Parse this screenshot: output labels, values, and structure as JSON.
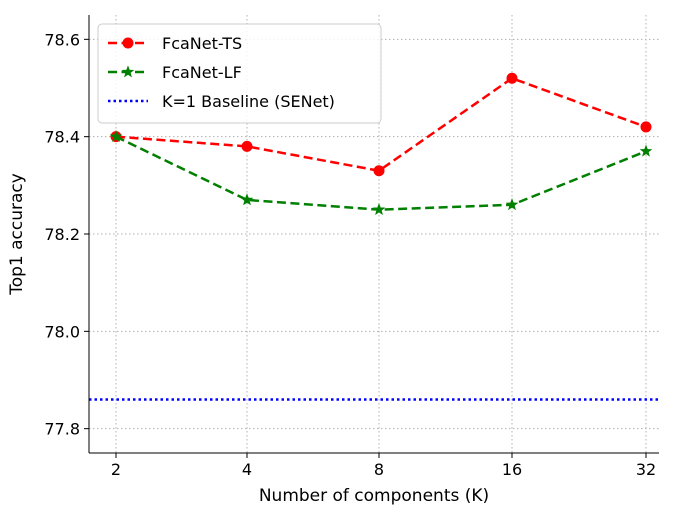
{
  "chart_data": {
    "type": "line",
    "categories": [
      "2",
      "4",
      "8",
      "16",
      "32"
    ],
    "xlabel": "Number of components (K)",
    "ylabel": "Top1 accuracy",
    "ylim": [
      77.75,
      78.65
    ],
    "yticks": [
      77.8,
      78.0,
      78.2,
      78.4,
      78.6
    ],
    "grid": true,
    "legend_position": "top-left",
    "series": [
      {
        "name": "FcaNet-TS",
        "color": "#ff0000",
        "marker": "circle",
        "style": "dashed",
        "values": [
          78.4,
          78.38,
          78.33,
          78.52,
          78.42
        ]
      },
      {
        "name": "FcaNet-LF",
        "color": "#008000",
        "marker": "star",
        "style": "dashed",
        "values": [
          78.4,
          78.27,
          78.25,
          78.26,
          78.37
        ]
      }
    ],
    "baselines": [
      {
        "name": "K=1 Baseline (SENet)",
        "color": "#0000ff",
        "style": "dotted",
        "value": 77.86
      }
    ]
  }
}
